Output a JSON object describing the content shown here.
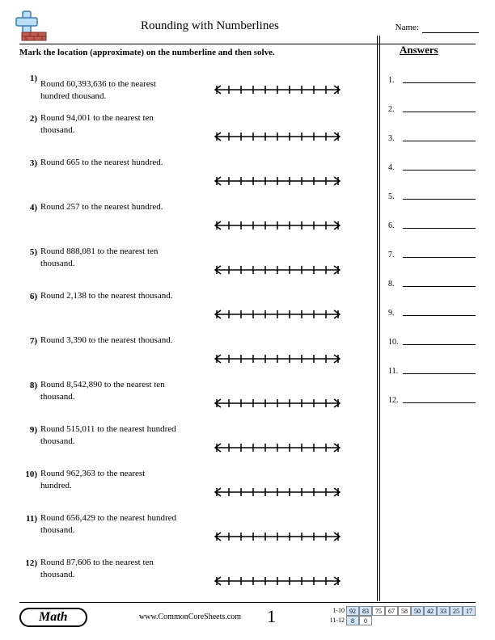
{
  "title": "Rounding with Numberlines",
  "name_label": "Name:",
  "instruction": "Mark the location (approximate) on the numberline and then solve.",
  "answers_title": "Answers",
  "numberline": {
    "tick_count": 11,
    "stroke": "#000000",
    "stroke_width": 1.5
  },
  "questions": [
    {
      "n": "1)",
      "text": "Round 60,393,636 to the nearest hundred thousand."
    },
    {
      "n": "2)",
      "text": "Round 94,001 to the nearest ten thousand."
    },
    {
      "n": "3)",
      "text": "Round 665 to the nearest hundred."
    },
    {
      "n": "4)",
      "text": "Round 257 to the nearest hundred."
    },
    {
      "n": "5)",
      "text": "Round 888,081 to the nearest ten thousand."
    },
    {
      "n": "6)",
      "text": "Round 2,138 to the nearest thousand."
    },
    {
      "n": "7)",
      "text": "Round 3,390 to the nearest thousand."
    },
    {
      "n": "8)",
      "text": "Round 8,542,890 to the nearest ten thousand."
    },
    {
      "n": "9)",
      "text": "Round 515,011 to the nearest hundred thousand."
    },
    {
      "n": "10)",
      "text": "Round 962,363 to the nearest hundred."
    },
    {
      "n": "11)",
      "text": "Round 656,429 to the nearest hundred thousand."
    },
    {
      "n": "12)",
      "text": "Round 87,606 to the nearest ten thousand."
    }
  ],
  "answer_count": 12,
  "footer": {
    "math_label": "Math",
    "site": "www.CommonCoreSheets.com",
    "page": "1",
    "score_rows": [
      {
        "label": "1-10",
        "cells": [
          {
            "v": "92",
            "bg": "#cfe5f7"
          },
          {
            "v": "83",
            "bg": "#cfe5f7"
          },
          {
            "v": "75",
            "bg": "#ffffff"
          },
          {
            "v": "67",
            "bg": "#ffffff"
          },
          {
            "v": "58",
            "bg": "#ffffff"
          },
          {
            "v": "50",
            "bg": "#cfe5f7"
          },
          {
            "v": "42",
            "bg": "#cfe5f7"
          },
          {
            "v": "33",
            "bg": "#cfe5f7"
          },
          {
            "v": "25",
            "bg": "#cfe5f7"
          },
          {
            "v": "17",
            "bg": "#cfe5f7"
          }
        ]
      },
      {
        "label": "11-12",
        "cells": [
          {
            "v": "8",
            "bg": "#cfe5f7"
          },
          {
            "v": "0",
            "bg": "#ffffff"
          }
        ]
      }
    ]
  },
  "logo": {
    "cross_fill": "#bcdff8",
    "cross_stroke": "#3a7ab5",
    "brick_fill": "#c15a4e",
    "brick_stroke": "#7a2e26"
  }
}
